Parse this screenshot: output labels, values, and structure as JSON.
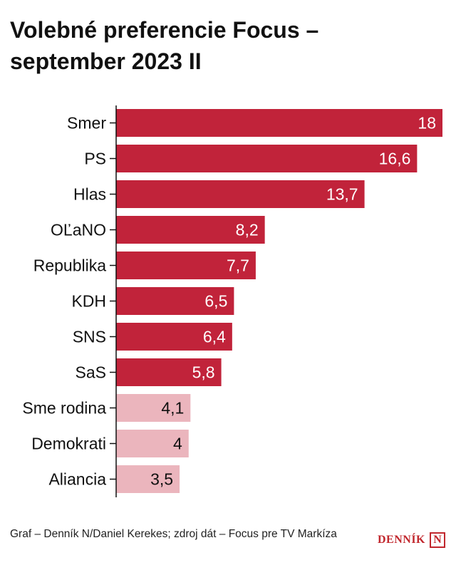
{
  "title_lines": [
    "Volebné preferencie Focus –",
    "september 2023 II"
  ],
  "chart_data": {
    "type": "bar",
    "orientation": "horizontal",
    "categories": [
      "Smer",
      "PS",
      "Hlas",
      "OĽaNO",
      "Republika",
      "KDH",
      "SNS",
      "SaS",
      "Sme rodina",
      "Demokrati",
      "Aliancia"
    ],
    "values": [
      18,
      16.6,
      13.7,
      8.2,
      7.7,
      6.5,
      6.4,
      5.8,
      4.1,
      4,
      3.5
    ],
    "value_labels": [
      "18",
      "16,6",
      "13,7",
      "8,2",
      "7,7",
      "6,5",
      "6,4",
      "5,8",
      "4,1",
      "4",
      "3,5"
    ],
    "highlighted_count": 8,
    "xlim": [
      0,
      18
    ],
    "grid": false,
    "colors": {
      "highlight": "#c1233a",
      "muted": "#ebb5bd",
      "label_on_dark": "#ffffff",
      "label_on_light": "#111111"
    }
  },
  "footer": {
    "source": "Graf – Denník N/Daniel Kerekes; zdroj dát – Focus pre TV Markíza",
    "logo_text": "DENNÍK",
    "logo_letter": "N"
  }
}
